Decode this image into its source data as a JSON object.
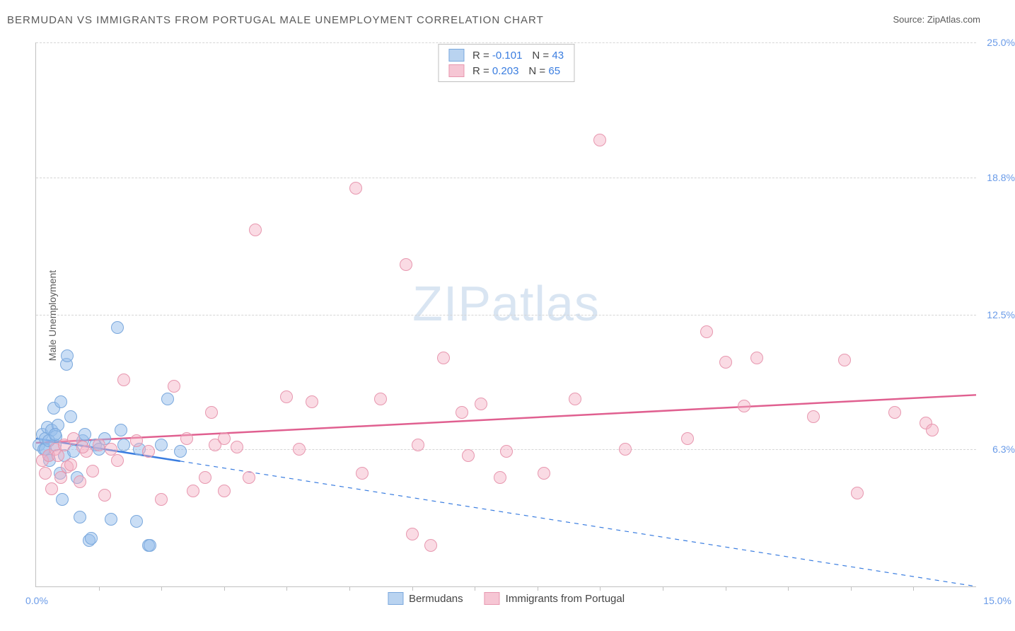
{
  "title": "BERMUDAN VS IMMIGRANTS FROM PORTUGAL MALE UNEMPLOYMENT CORRELATION CHART",
  "source": "Source: ZipAtlas.com",
  "watermark_a": "ZIP",
  "watermark_b": "atlas",
  "chart": {
    "type": "scatter",
    "ylabel": "Male Unemployment",
    "xlim": [
      0,
      15
    ],
    "ylim": [
      0,
      25
    ],
    "x_tick_labels": {
      "left": "0.0%",
      "right": "15.0%"
    },
    "x_minor_ticks": [
      1,
      2,
      3,
      4,
      5,
      6,
      7,
      8,
      9,
      10,
      11,
      12,
      13,
      14
    ],
    "y_gridlines": [
      6.3,
      12.5,
      18.8,
      25.0
    ],
    "y_tick_labels": [
      "6.3%",
      "12.5%",
      "18.8%",
      "25.0%"
    ],
    "background_color": "#ffffff",
    "grid_color": "#d5d5d5",
    "axis_color": "#c0c0c0",
    "label_color": "#6a9be8",
    "text_color": "#5a5a5a",
    "point_radius": 9,
    "point_border_width": 1.5,
    "series": [
      {
        "name": "Bermudans",
        "fill_color": "rgba(150,190,235,0.5)",
        "border_color": "#7aa8dd",
        "swatch_fill": "#b9d3f0",
        "swatch_border": "#7aa8dd",
        "R": "-0.101",
        "N": "43",
        "trend": {
          "x1": 0,
          "y1": 6.8,
          "x2": 15,
          "y2": 0.0,
          "solid_until_x": 2.3,
          "color": "#3a7de0",
          "width": 2.5,
          "dash": "6 6"
        },
        "points": [
          [
            0.05,
            6.5
          ],
          [
            0.1,
            7.0
          ],
          [
            0.12,
            6.3
          ],
          [
            0.15,
            6.8
          ],
          [
            0.18,
            7.3
          ],
          [
            0.2,
            6.0
          ],
          [
            0.22,
            5.8
          ],
          [
            0.25,
            7.2
          ],
          [
            0.28,
            8.2
          ],
          [
            0.3,
            6.5
          ],
          [
            0.32,
            6.9
          ],
          [
            0.35,
            7.4
          ],
          [
            0.38,
            5.2
          ],
          [
            0.4,
            8.5
          ],
          [
            0.42,
            4.0
          ],
          [
            0.45,
            6.0
          ],
          [
            0.48,
            10.2
          ],
          [
            0.5,
            10.6
          ],
          [
            0.55,
            7.8
          ],
          [
            0.6,
            6.2
          ],
          [
            0.65,
            5.0
          ],
          [
            0.7,
            3.2
          ],
          [
            0.75,
            6.7
          ],
          [
            0.78,
            7.0
          ],
          [
            0.85,
            2.1
          ],
          [
            0.88,
            2.2
          ],
          [
            0.95,
            6.5
          ],
          [
            1.0,
            6.3
          ],
          [
            1.1,
            6.8
          ],
          [
            1.2,
            3.1
          ],
          [
            1.3,
            11.9
          ],
          [
            1.35,
            7.2
          ],
          [
            1.4,
            6.5
          ],
          [
            1.6,
            3.0
          ],
          [
            1.65,
            6.3
          ],
          [
            1.8,
            1.9
          ],
          [
            1.82,
            1.9
          ],
          [
            2.0,
            6.5
          ],
          [
            2.1,
            8.6
          ],
          [
            2.3,
            6.2
          ],
          [
            0.15,
            6.3
          ],
          [
            0.2,
            6.7
          ],
          [
            0.3,
            7.0
          ]
        ]
      },
      {
        "name": "Immigrants from Portugal",
        "fill_color": "rgba(245,175,195,0.45)",
        "border_color": "#e797af",
        "swatch_fill": "#f6c6d4",
        "swatch_border": "#e797af",
        "R": "0.203",
        "N": "65",
        "trend": {
          "x1": 0,
          "y1": 6.6,
          "x2": 15,
          "y2": 8.8,
          "solid_until_x": 15,
          "color": "#e06090",
          "width": 2.5,
          "dash": null
        },
        "points": [
          [
            0.1,
            5.8
          ],
          [
            0.15,
            5.2
          ],
          [
            0.2,
            6.0
          ],
          [
            0.25,
            4.5
          ],
          [
            0.3,
            6.3
          ],
          [
            0.4,
            5.0
          ],
          [
            0.45,
            6.5
          ],
          [
            0.5,
            5.5
          ],
          [
            0.6,
            6.8
          ],
          [
            0.7,
            4.8
          ],
          [
            0.8,
            6.2
          ],
          [
            0.9,
            5.3
          ],
          [
            1.0,
            6.5
          ],
          [
            1.1,
            4.2
          ],
          [
            1.2,
            6.3
          ],
          [
            1.3,
            5.8
          ],
          [
            1.4,
            9.5
          ],
          [
            1.6,
            6.7
          ],
          [
            1.8,
            6.2
          ],
          [
            2.0,
            4.0
          ],
          [
            2.2,
            9.2
          ],
          [
            2.4,
            6.8
          ],
          [
            2.5,
            4.4
          ],
          [
            2.7,
            5.0
          ],
          [
            2.8,
            8.0
          ],
          [
            2.85,
            6.5
          ],
          [
            3.0,
            6.8
          ],
          [
            3.0,
            4.4
          ],
          [
            3.2,
            6.4
          ],
          [
            3.4,
            5.0
          ],
          [
            3.5,
            16.4
          ],
          [
            4.0,
            8.7
          ],
          [
            4.2,
            6.3
          ],
          [
            4.4,
            8.5
          ],
          [
            5.1,
            18.3
          ],
          [
            5.2,
            5.2
          ],
          [
            5.5,
            8.6
          ],
          [
            5.9,
            14.8
          ],
          [
            6.0,
            2.4
          ],
          [
            6.1,
            6.5
          ],
          [
            6.3,
            1.9
          ],
          [
            6.5,
            10.5
          ],
          [
            6.8,
            8.0
          ],
          [
            6.9,
            6.0
          ],
          [
            7.1,
            8.4
          ],
          [
            7.4,
            5.0
          ],
          [
            7.5,
            6.2
          ],
          [
            8.1,
            5.2
          ],
          [
            8.6,
            8.6
          ],
          [
            9.0,
            20.5
          ],
          [
            9.4,
            6.3
          ],
          [
            10.4,
            6.8
          ],
          [
            10.7,
            11.7
          ],
          [
            11.0,
            10.3
          ],
          [
            11.3,
            8.3
          ],
          [
            11.5,
            10.5
          ],
          [
            12.4,
            7.8
          ],
          [
            12.9,
            10.4
          ],
          [
            13.1,
            4.3
          ],
          [
            13.7,
            8.0
          ],
          [
            14.2,
            7.5
          ],
          [
            14.3,
            7.2
          ],
          [
            0.35,
            6.0
          ],
          [
            0.55,
            5.6
          ],
          [
            0.75,
            6.4
          ]
        ]
      }
    ]
  },
  "legend": {
    "items": [
      "Bermudans",
      "Immigrants from Portugal"
    ]
  },
  "stats_labels": {
    "R": "R =",
    "N": "N ="
  }
}
